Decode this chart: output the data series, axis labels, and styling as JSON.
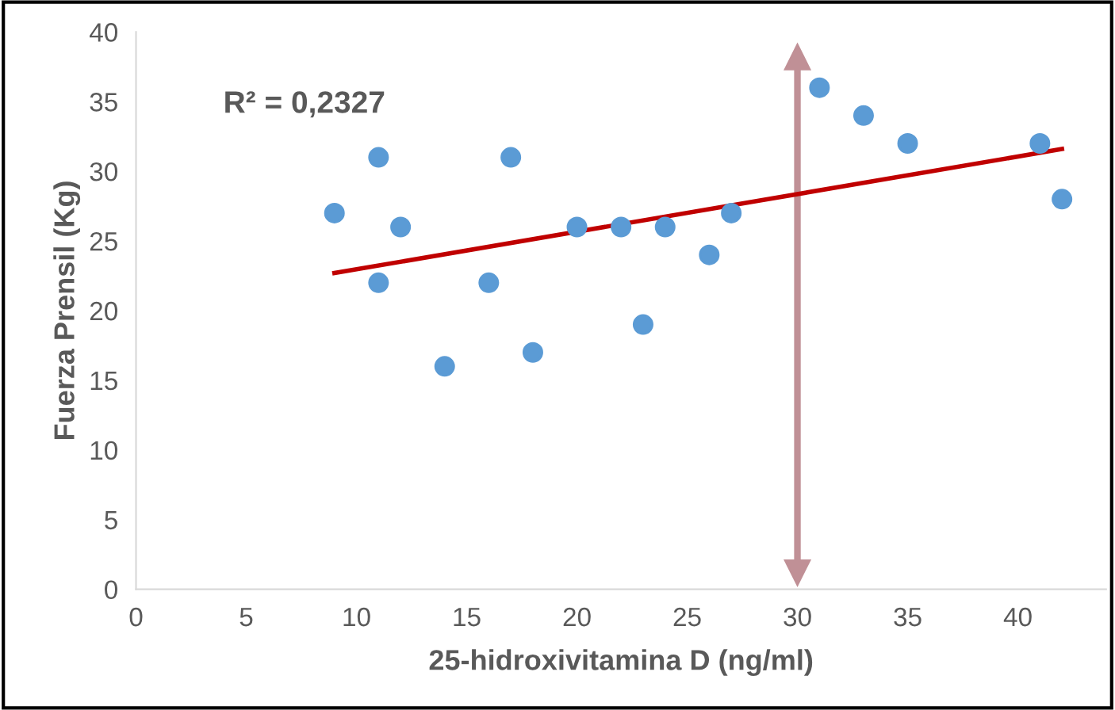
{
  "chart_data": {
    "type": "scatter",
    "xlabel": "25-hidroxivitamina D (ng/ml)",
    "ylabel": "Fuerza Prensil (Kg)",
    "annotations": [
      "R² = 0,2327"
    ],
    "series": [
      {
        "marker": "circle",
        "color": "#5b9bd5",
        "x": [
          9,
          11,
          11,
          12,
          14,
          16,
          17,
          18,
          20,
          22,
          23,
          24,
          26,
          27,
          31,
          33,
          35,
          41,
          42
        ],
        "values": [
          27,
          31,
          22,
          26,
          16,
          22,
          31,
          17,
          26,
          26,
          19,
          26,
          24,
          27,
          36,
          34,
          32,
          32,
          28
        ]
      },
      {
        "type": "line",
        "color": "#c00000",
        "x": [
          9,
          42
        ],
        "values": [
          22.7,
          31.6
        ]
      }
    ],
    "ref_lines": [
      {
        "axis": "x",
        "value": 30,
        "color": "#c09096"
      }
    ],
    "xlim": [
      0,
      44
    ],
    "ylim": [
      0,
      40
    ],
    "xticks": [
      0,
      5,
      10,
      15,
      20,
      25,
      30,
      35,
      40
    ],
    "yticks": [
      0,
      5,
      10,
      15,
      20,
      25,
      30,
      35,
      40
    ],
    "grid": false,
    "legend": false
  }
}
